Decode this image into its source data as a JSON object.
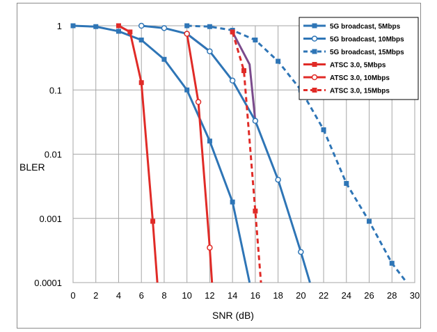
{
  "chart_data": {
    "type": "line",
    "xlabel": "SNR (dB)",
    "ylabel": "BLER",
    "xlim": [
      0,
      30
    ],
    "ylim": [
      0.0001,
      1
    ],
    "yscale": "log",
    "grid": true,
    "legend_position": "top-right",
    "x_ticks": [
      "0",
      "2",
      "4",
      "6",
      "8",
      "10",
      "12",
      "14",
      "16",
      "18",
      "20",
      "22",
      "24",
      "26",
      "28",
      "30"
    ],
    "y_ticks": [
      "1",
      "0.1",
      "0.01",
      "0.001",
      "0.0001"
    ],
    "series": [
      {
        "name": "5G broadcast, 5Mbps",
        "color": "#2e75b6",
        "dash": false,
        "marker": "square",
        "x": [
          0,
          2,
          4,
          6,
          8,
          10,
          12,
          14,
          15.5
        ],
        "y": [
          1,
          0.97,
          0.82,
          0.6,
          0.3,
          0.1,
          0.016,
          0.0018,
          0.0001
        ]
      },
      {
        "name": "5G broadcast, 10Mbps",
        "color": "#2e75b6",
        "dash": false,
        "marker": "circle",
        "x": [
          6,
          8,
          10,
          12,
          14,
          16,
          18,
          20,
          20.8
        ],
        "y": [
          1,
          0.92,
          0.75,
          0.4,
          0.14,
          0.033,
          0.004,
          0.0003,
          0.0001
        ]
      },
      {
        "name": "5G broadcast, 15Mbps",
        "color": "#2e75b6",
        "dash": true,
        "marker": "square",
        "x": [
          10,
          12,
          14,
          16,
          18,
          20,
          22,
          24,
          26,
          28,
          29.3
        ],
        "y": [
          1,
          0.97,
          0.85,
          0.6,
          0.28,
          0.1,
          0.024,
          0.0035,
          0.0009,
          0.0002,
          0.0001
        ]
      },
      {
        "name": "ATSC 3.0, 5Mbps",
        "color": "#e02b27",
        "dash": false,
        "marker": "square",
        "x": [
          4,
          5,
          6,
          7,
          7.4
        ],
        "y": [
          1,
          0.8,
          0.13,
          0.0009,
          0.0001
        ]
      },
      {
        "name": "ATSC 3.0, 10Mbps",
        "color": "#e02b27",
        "dash": false,
        "marker": "circle",
        "x": [
          10,
          11,
          12,
          12.2
        ],
        "y": [
          0.75,
          0.065,
          0.00035,
          0.0001
        ]
      },
      {
        "name": "ATSC 3.0, 15Mbps",
        "color": "#e02b27",
        "dash": true,
        "marker": "square",
        "x": [
          14,
          15,
          16,
          16.5
        ],
        "y": [
          0.8,
          0.2,
          0.0013,
          0.0001
        ]
      }
    ],
    "connectors": [
      {
        "color": "#7b4b8c",
        "x": [
          5,
          4
        ],
        "y": [
          0.8,
          1
        ]
      },
      {
        "color": "#7b4b8c",
        "x": [
          10,
          12
        ],
        "y": [
          0.75,
          0.4
        ]
      },
      {
        "color": "#7b4b8c",
        "x": [
          14,
          15.5,
          16
        ],
        "y": [
          0.8,
          0.25,
          0.033
        ]
      }
    ]
  }
}
